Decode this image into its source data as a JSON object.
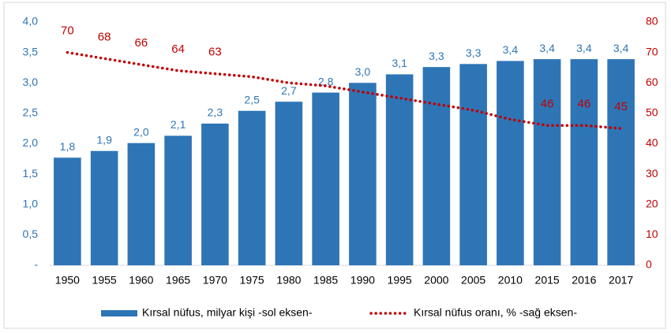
{
  "chart_data": {
    "type": "bar-line",
    "categories": [
      "1950",
      "1955",
      "1960",
      "1965",
      "1970",
      "1975",
      "1980",
      "1985",
      "1990",
      "1995",
      "2000",
      "2005",
      "2010",
      "2015",
      "2016",
      "2017"
    ],
    "series": [
      {
        "name": "Kırsal nüfus, milyar kişi -sol eksen-",
        "type": "bar",
        "color": "#2e75b6",
        "values": [
          1.77,
          1.88,
          2.01,
          2.13,
          2.33,
          2.54,
          2.69,
          2.84,
          3.0,
          3.14,
          3.26,
          3.31,
          3.36,
          3.39,
          3.39,
          3.39
        ],
        "value_labels": [
          "1,8",
          "1,9",
          "2,0",
          "2,1",
          "2,3",
          "2,5",
          "2,7",
          "2,8",
          "3,0",
          "3,1",
          "3,3",
          "3,3",
          "3,4",
          "3,4",
          "3,4",
          "3,4"
        ]
      },
      {
        "name": "Kırsal nüfus oranı, % -sağ eksen-",
        "type": "line",
        "axis": "y2",
        "color": "#c00000",
        "values": [
          70,
          68,
          66,
          64,
          63,
          62,
          60,
          59,
          57,
          55,
          53,
          51,
          48,
          46,
          46,
          45
        ],
        "value_labels": [
          "70",
          "68",
          "66",
          "64",
          "63",
          null,
          null,
          null,
          null,
          null,
          null,
          null,
          null,
          "46",
          "46",
          "45"
        ]
      }
    ],
    "ylim": [
      0,
      4
    ],
    "yticks": [
      {
        "value": 0,
        "label": "-"
      },
      {
        "value": 0.5,
        "label": "0,5"
      },
      {
        "value": 1,
        "label": "1,0"
      },
      {
        "value": 1.5,
        "label": "1,5"
      },
      {
        "value": 2,
        "label": "2,0"
      },
      {
        "value": 2.5,
        "label": "2,5"
      },
      {
        "value": 3,
        "label": "3,0"
      },
      {
        "value": 3.5,
        "label": "3,5"
      },
      {
        "value": 4,
        "label": "4,0"
      }
    ],
    "y2lim": [
      0,
      80
    ],
    "y2ticks": [
      0,
      10,
      20,
      30,
      40,
      50,
      60,
      70,
      80
    ],
    "legend": "bottom"
  }
}
